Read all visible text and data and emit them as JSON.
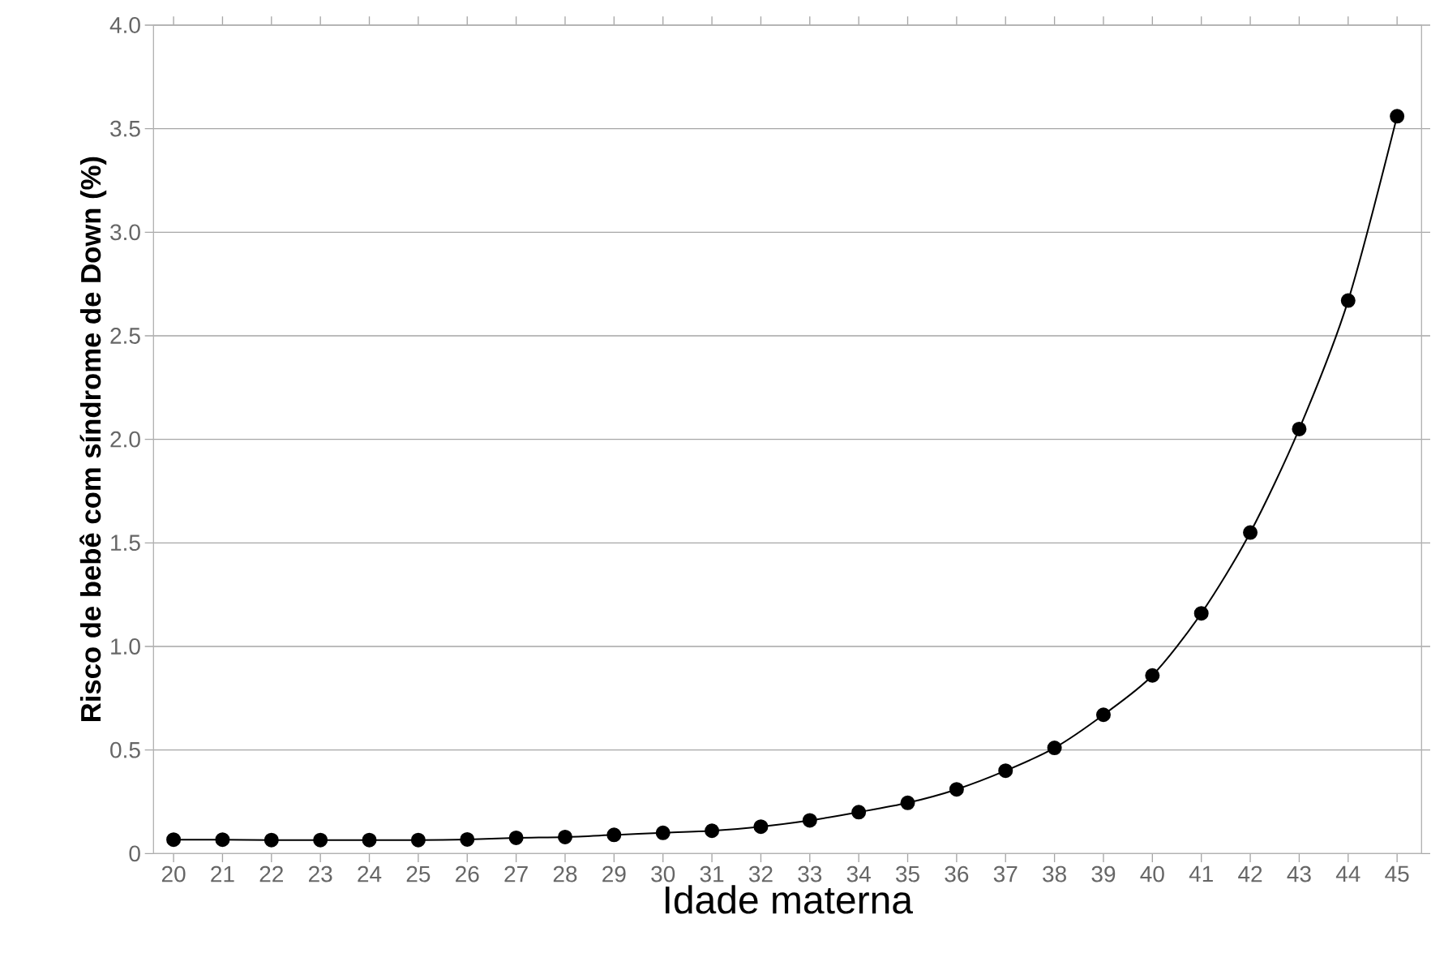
{
  "chart_data": {
    "type": "line",
    "xlabel": "Idade materna",
    "ylabel": "Risco de bebê com síndrome de Down (%)",
    "categories": [
      "20",
      "21",
      "22",
      "23",
      "24",
      "25",
      "26",
      "27",
      "28",
      "29",
      "30",
      "31",
      "32",
      "33",
      "34",
      "35",
      "36",
      "37",
      "38",
      "39",
      "40",
      "41",
      "42",
      "43",
      "44",
      "45"
    ],
    "values": [
      0.067,
      0.067,
      0.065,
      0.065,
      0.065,
      0.065,
      0.068,
      0.076,
      0.08,
      0.09,
      0.1,
      0.11,
      0.13,
      0.16,
      0.2,
      0.245,
      0.31,
      0.4,
      0.51,
      0.67,
      0.86,
      1.16,
      1.55,
      2.05,
      2.67,
      3.56
    ],
    "color": "#000000",
    "ylim": [
      0,
      4.0
    ],
    "yticks": [
      0,
      0.5,
      {
        "value": 1.0,
        "label": "1.0"
      },
      1.5,
      {
        "value": 2.0,
        "label": "2.0"
      },
      2.5,
      {
        "value": 3.0,
        "label": "3.0"
      },
      3.5,
      {
        "value": 4.0,
        "label": "4.0"
      }
    ],
    "grid": "y",
    "marker": "circle",
    "line_style": "solid"
  }
}
